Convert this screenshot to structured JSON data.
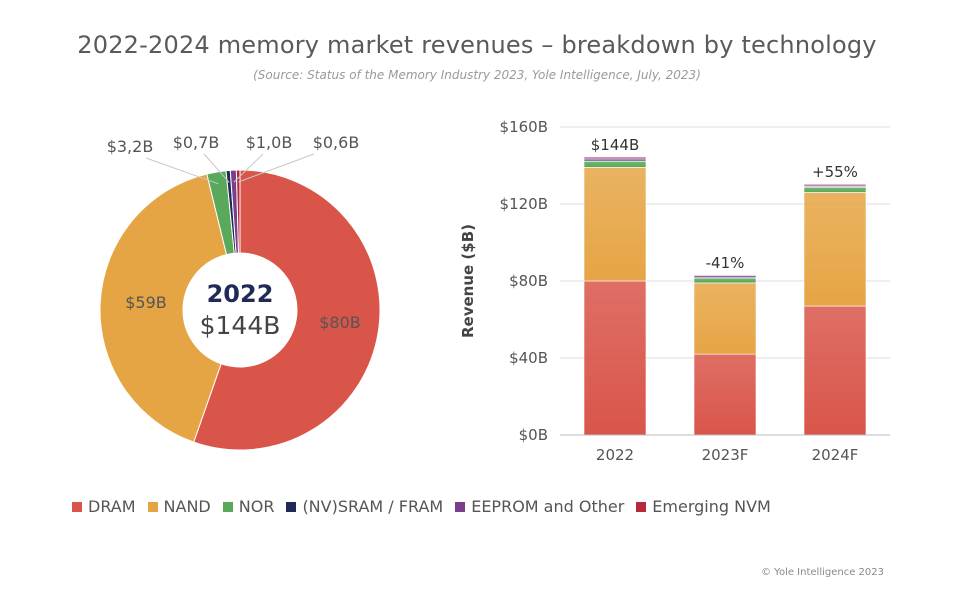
{
  "title": "2022-2024 memory market revenues – breakdown by technology",
  "subtitle": "(Source:  Status of the Memory Industry 2023, Yole Intelligence, July, 2023)",
  "footer": "© Yole Intelligence 2023",
  "colors": {
    "DRAM": "#d9554a",
    "NAND": "#e6a545",
    "NOR": "#5aa85a",
    "(NV)SRAM / FRAM": "#1f2a57",
    "EEPROM and Other": "#7a3f8c",
    "Emerging NVM": "#b8283c"
  },
  "legend": [
    {
      "label": "DRAM",
      "color": "#d9554a"
    },
    {
      "label": "NAND",
      "color": "#e6a545"
    },
    {
      "label": "NOR",
      "color": "#5aa85a"
    },
    {
      "label": "(NV)SRAM / FRAM",
      "color": "#1f2a57"
    },
    {
      "label": "EEPROM and Other",
      "color": "#7a3f8c"
    },
    {
      "label": "Emerging NVM",
      "color": "#b8283c"
    }
  ],
  "chart_data": [
    {
      "type": "pie",
      "donut": true,
      "center_label_top": "2022",
      "center_label_bottom": "$144B",
      "slices": [
        {
          "name": "DRAM",
          "value": 80,
          "label": "$80B"
        },
        {
          "name": "NAND",
          "value": 59,
          "label": "$59B"
        },
        {
          "name": "NOR",
          "value": 3.2,
          "label": "$3,2B"
        },
        {
          "name": "(NV)SRAM / FRAM",
          "value": 0.7,
          "label": "$0,7B"
        },
        {
          "name": "EEPROM and Other",
          "value": 1.0,
          "label": "$1,0B"
        },
        {
          "name": "Emerging NVM",
          "value": 0.6,
          "label": "$0,6B"
        }
      ]
    },
    {
      "type": "bar",
      "stacked": true,
      "categories": [
        "2022",
        "2023F",
        "2024F"
      ],
      "ylabel": "Revenue ($B)",
      "ylim": [
        0,
        160
      ],
      "yticks": [
        0,
        40,
        80,
        120,
        160
      ],
      "ytick_labels": [
        "$0B",
        "$40B",
        "$80B",
        "$120B",
        "$160B"
      ],
      "grid": true,
      "top_labels": [
        "$144B",
        "-41%",
        "+55%"
      ],
      "series": [
        {
          "name": "DRAM",
          "values": [
            80,
            42,
            67
          ]
        },
        {
          "name": "NAND",
          "values": [
            59,
            37,
            59
          ]
        },
        {
          "name": "NOR",
          "values": [
            3.2,
            2.5,
            2.6
          ]
        },
        {
          "name": "(NV)SRAM / FRAM",
          "values": [
            0.7,
            0.5,
            0.5
          ]
        },
        {
          "name": "EEPROM and Other",
          "values": [
            1.0,
            0.8,
            0.8
          ]
        },
        {
          "name": "Emerging NVM",
          "values": [
            0.6,
            0.4,
            0.5
          ]
        }
      ]
    }
  ]
}
